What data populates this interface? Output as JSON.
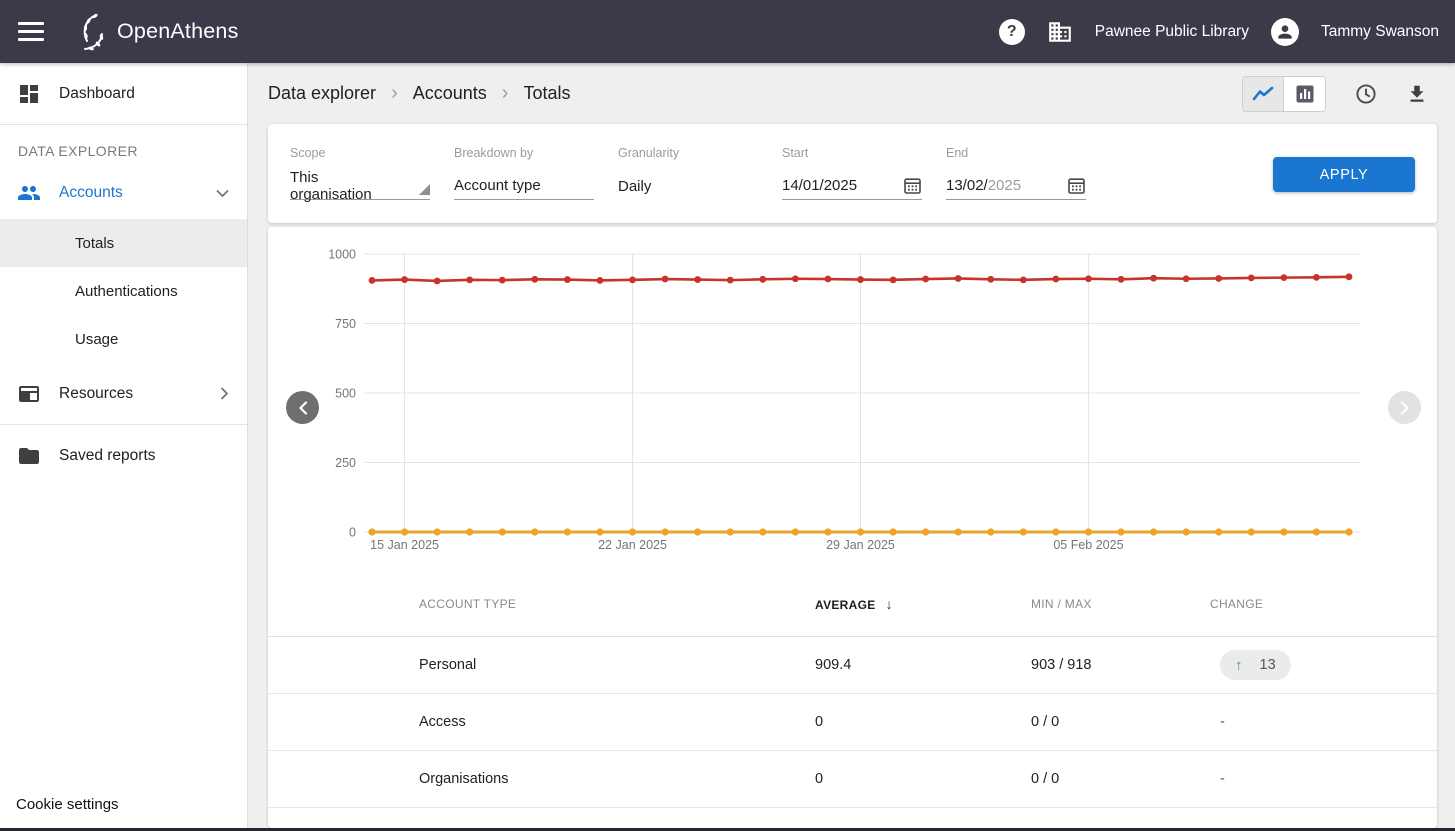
{
  "header": {
    "brand": "OpenAthens",
    "organisation": "Pawnee Public Library",
    "user": "Tammy Swanson"
  },
  "icons": {
    "help": "?",
    "sort_desc": "↓",
    "change_up": "↑",
    "breadcrumb_separator": "›"
  },
  "sidebar": {
    "dashboard": "Dashboard",
    "section_title": "DATA EXPLORER",
    "accounts": "Accounts",
    "totals": "Totals",
    "authentications": "Authentications",
    "usage": "Usage",
    "resources": "Resources",
    "saved_reports": "Saved reports",
    "cookie_settings": "Cookie settings"
  },
  "breadcrumb": {
    "items": [
      "Data explorer",
      "Accounts",
      "Totals"
    ]
  },
  "filters": {
    "scope": {
      "label": "Scope",
      "value": "This organisation"
    },
    "breakdown": {
      "label": "Breakdown by",
      "value": "Account type"
    },
    "granularity": {
      "label": "Granularity",
      "value": "Daily"
    },
    "start": {
      "label": "Start",
      "value": "14/01/2025"
    },
    "end": {
      "label": "End",
      "value_main": "13/02/",
      "value_muted": "2025"
    },
    "apply_label": "APPLY"
  },
  "chart_data": {
    "type": "line",
    "x_unit": "day",
    "x_start": "14/01/2025",
    "x_tick_labels": [
      "15 Jan 2025",
      "22 Jan 2025",
      "29 Jan 2025",
      "05 Feb 2025"
    ],
    "x_tick_day_index": [
      1,
      8,
      15,
      22
    ],
    "ylim": [
      0,
      1000
    ],
    "yticks": [
      0,
      250,
      500,
      750,
      1000
    ],
    "grid": true,
    "legend_position": "table-below",
    "series": [
      {
        "name": "Personal",
        "color": "#c6342b",
        "values": [
          905,
          908,
          903,
          907,
          906,
          909,
          908,
          905,
          907,
          910,
          908,
          906,
          909,
          911,
          910,
          908,
          907,
          910,
          912,
          909,
          907,
          910,
          911,
          909,
          913,
          911,
          912,
          914,
          915,
          916,
          918
        ]
      },
      {
        "name": "Access",
        "color": "#2196f3",
        "values": [
          0,
          0,
          0,
          0,
          0,
          0,
          0,
          0,
          0,
          0,
          0,
          0,
          0,
          0,
          0,
          0,
          0,
          0,
          0,
          0,
          0,
          0,
          0,
          0,
          0,
          0,
          0,
          0,
          0,
          0,
          0
        ]
      },
      {
        "name": "Organisations",
        "color": "#4caf50",
        "values": [
          0,
          0,
          0,
          0,
          0,
          0,
          0,
          0,
          0,
          0,
          0,
          0,
          0,
          0,
          0,
          0,
          0,
          0,
          0,
          0,
          0,
          0,
          0,
          0,
          0,
          0,
          0,
          0,
          0,
          0,
          0
        ]
      },
      {
        "name": "",
        "color": "#f9a11b",
        "values": [
          0,
          0,
          0,
          0,
          0,
          0,
          0,
          0,
          0,
          0,
          0,
          0,
          0,
          0,
          0,
          0,
          0,
          0,
          0,
          0,
          0,
          0,
          0,
          0,
          0,
          0,
          0,
          0,
          0,
          0,
          0
        ]
      }
    ]
  },
  "table": {
    "columns": [
      {
        "label": "ACCOUNT TYPE",
        "sorted": false
      },
      {
        "label": "AVERAGE",
        "sorted": true,
        "sort_dir": "desc"
      },
      {
        "label": "MIN / MAX",
        "sorted": false
      },
      {
        "label": "CHANGE",
        "sorted": false
      }
    ],
    "rows": [
      {
        "color": "#c6342b",
        "label": "Personal",
        "average": "909.4",
        "min_max": "903 / 918",
        "change": "13",
        "change_up": true
      },
      {
        "color": "#2196f3",
        "label": "Access",
        "average": "0",
        "min_max": "0 / 0",
        "change": "-",
        "change_up": false
      },
      {
        "color": "#4caf50",
        "label": "Organisations",
        "average": "0",
        "min_max": "0 / 0",
        "change": "-",
        "change_up": false
      },
      {
        "color": "#f9a11b",
        "label": "",
        "average": "",
        "min_max": "",
        "change": "",
        "change_up": false
      }
    ]
  }
}
